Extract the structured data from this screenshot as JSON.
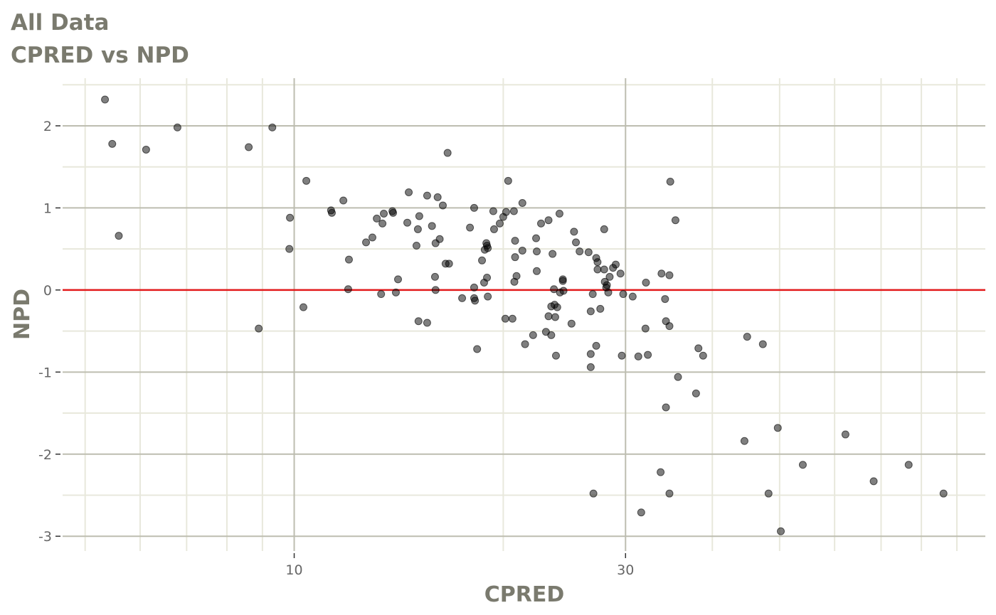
{
  "chart_data": {
    "type": "scatter",
    "title": "All Data",
    "subtitle": "CPRED vs NPD",
    "xlabel": "CPRED",
    "ylabel": "NPD",
    "x_scale": "log10",
    "xlim": [
      4.64,
      98.9
    ],
    "ylim": [
      -3.18,
      2.58
    ],
    "x_ticks": [
      10,
      30
    ],
    "x_tick_labels": [
      "10",
      "30"
    ],
    "x_minor_grid": [
      5,
      6,
      7,
      8,
      9,
      20,
      40,
      50,
      60,
      70,
      80,
      90
    ],
    "y_ticks": [
      -3,
      -2,
      -1,
      0,
      1,
      2
    ],
    "y_tick_labels": [
      "-3",
      "-2",
      "-1",
      "0",
      "1",
      "2"
    ],
    "y_minor_grid": [
      -2.5,
      -1.5,
      -0.5,
      0.5,
      1.5,
      2.5
    ],
    "grid": true,
    "reference_line": {
      "y": 0,
      "color": "#e31a1c"
    },
    "colors": {
      "points": "#000000",
      "title": "#7a7a6e",
      "grid_major": "#bdbdb0",
      "grid_minor": "#e8e8dc"
    },
    "point_alpha": 0.5,
    "points": [
      [
        5.34,
        2.32
      ],
      [
        5.47,
        1.78
      ],
      [
        5.59,
        0.66
      ],
      [
        6.12,
        1.71
      ],
      [
        6.79,
        1.98
      ],
      [
        8.6,
        1.74
      ],
      [
        9.3,
        1.98
      ],
      [
        8.89,
        -0.47
      ],
      [
        9.86,
        0.88
      ],
      [
        9.84,
        0.5
      ],
      [
        10.31,
        -0.21
      ],
      [
        10.41,
        1.33
      ],
      [
        11.3,
        0.97
      ],
      [
        11.33,
        0.94
      ],
      [
        11.77,
        1.09
      ],
      [
        11.99,
        0.37
      ],
      [
        11.96,
        0.01
      ],
      [
        12.69,
        0.58
      ],
      [
        12.96,
        0.64
      ],
      [
        13.15,
        0.87
      ],
      [
        13.46,
        0.93
      ],
      [
        13.4,
        0.81
      ],
      [
        13.34,
        -0.05
      ],
      [
        13.85,
        0.96
      ],
      [
        13.88,
        0.94
      ],
      [
        14.01,
        -0.03
      ],
      [
        14.11,
        0.13
      ],
      [
        14.55,
        0.82
      ],
      [
        14.62,
        1.19
      ],
      [
        15.0,
        0.54
      ],
      [
        15.07,
        0.74
      ],
      [
        15.14,
        0.9
      ],
      [
        15.1,
        -0.38
      ],
      [
        15.54,
        1.15
      ],
      [
        15.54,
        -0.4
      ],
      [
        15.79,
        0.78
      ],
      [
        15.98,
        0.57
      ],
      [
        15.95,
        0.16
      ],
      [
        15.98,
        0.0
      ],
      [
        16.09,
        1.13
      ],
      [
        16.2,
        0.62
      ],
      [
        16.37,
        1.03
      ],
      [
        16.52,
        0.32
      ],
      [
        16.71,
        0.32
      ],
      [
        16.63,
        1.67
      ],
      [
        17.45,
        -0.1
      ],
      [
        17.91,
        0.76
      ],
      [
        18.16,
        1.0
      ],
      [
        18.16,
        0.03
      ],
      [
        18.16,
        -0.1
      ],
      [
        18.21,
        -0.13
      ],
      [
        18.34,
        -0.72
      ],
      [
        18.64,
        0.36
      ],
      [
        18.77,
        0.09
      ],
      [
        18.81,
        0.49
      ],
      [
        18.91,
        0.57
      ],
      [
        18.95,
        0.54
      ],
      [
        19.0,
        0.51
      ],
      [
        18.95,
        0.15
      ],
      [
        19.0,
        -0.08
      ],
      [
        19.35,
        0.96
      ],
      [
        19.4,
        0.74
      ],
      [
        19.77,
        0.81
      ],
      [
        20.0,
        0.89
      ],
      [
        20.19,
        0.95
      ],
      [
        20.14,
        -0.35
      ],
      [
        20.33,
        1.33
      ],
      [
        20.72,
        0.96
      ],
      [
        20.62,
        -0.35
      ],
      [
        20.8,
        0.6
      ],
      [
        20.8,
        0.4
      ],
      [
        20.75,
        0.1
      ],
      [
        20.9,
        0.17
      ],
      [
        21.31,
        1.06
      ],
      [
        21.31,
        0.48
      ],
      [
        21.5,
        -0.66
      ],
      [
        22.08,
        -0.55
      ],
      [
        22.3,
        0.63
      ],
      [
        22.35,
        0.47
      ],
      [
        22.35,
        0.23
      ],
      [
        22.67,
        0.81
      ],
      [
        23.04,
        -0.51
      ],
      [
        23.24,
        0.85
      ],
      [
        23.24,
        -0.32
      ],
      [
        23.45,
        -0.55
      ],
      [
        23.45,
        -0.2
      ],
      [
        23.55,
        0.44
      ],
      [
        23.66,
        0.01
      ],
      [
        23.71,
        -0.18
      ],
      [
        23.76,
        -0.33
      ],
      [
        23.82,
        -0.8
      ],
      [
        23.92,
        -0.21
      ],
      [
        24.1,
        0.93
      ],
      [
        24.14,
        -0.03
      ],
      [
        24.37,
        0.13
      ],
      [
        24.37,
        0.11
      ],
      [
        24.42,
        -0.01
      ],
      [
        25.08,
        -0.41
      ],
      [
        25.29,
        0.71
      ],
      [
        25.45,
        0.58
      ],
      [
        25.76,
        0.47
      ],
      [
        26.54,
        0.46
      ],
      [
        26.73,
        -0.26
      ],
      [
        26.73,
        -0.78
      ],
      [
        26.73,
        -0.94
      ],
      [
        26.91,
        -0.05
      ],
      [
        26.97,
        -2.48
      ],
      [
        27.22,
        0.39
      ],
      [
        27.22,
        -0.68
      ],
      [
        27.34,
        0.34
      ],
      [
        27.34,
        0.25
      ],
      [
        27.59,
        -0.23
      ],
      [
        27.95,
        0.74
      ],
      [
        27.95,
        0.25
      ],
      [
        28.01,
        0.1
      ],
      [
        28.14,
        0.03
      ],
      [
        28.2,
        0.06
      ],
      [
        28.33,
        -0.03
      ],
      [
        28.46,
        0.16
      ],
      [
        28.78,
        0.27
      ],
      [
        29.04,
        0.31
      ],
      [
        29.5,
        0.2
      ],
      [
        29.63,
        -0.8
      ],
      [
        29.77,
        -0.05
      ],
      [
        30.72,
        -0.08
      ],
      [
        31.3,
        -0.81
      ],
      [
        31.6,
        -2.71
      ],
      [
        32.05,
        -0.47
      ],
      [
        32.1,
        0.09
      ],
      [
        32.3,
        -0.79
      ],
      [
        33.7,
        -2.22
      ],
      [
        33.8,
        0.2
      ],
      [
        34.2,
        -0.11
      ],
      [
        34.3,
        -0.38
      ],
      [
        34.3,
        -1.43
      ],
      [
        34.7,
        0.18
      ],
      [
        34.7,
        -0.44
      ],
      [
        34.7,
        -2.48
      ],
      [
        34.8,
        1.32
      ],
      [
        35.4,
        0.85
      ],
      [
        35.7,
        -1.06
      ],
      [
        37.9,
        -1.26
      ],
      [
        38.2,
        -0.71
      ],
      [
        38.8,
        -0.8
      ],
      [
        44.5,
        -1.84
      ],
      [
        44.9,
        -0.57
      ],
      [
        47.3,
        -0.66
      ],
      [
        48.2,
        -2.48
      ],
      [
        49.7,
        -1.68
      ],
      [
        50.2,
        -2.94
      ],
      [
        54.0,
        -2.13
      ],
      [
        62.2,
        -1.76
      ],
      [
        68.3,
        -2.33
      ],
      [
        76.7,
        -2.13
      ],
      [
        86.1,
        -2.48
      ]
    ]
  }
}
